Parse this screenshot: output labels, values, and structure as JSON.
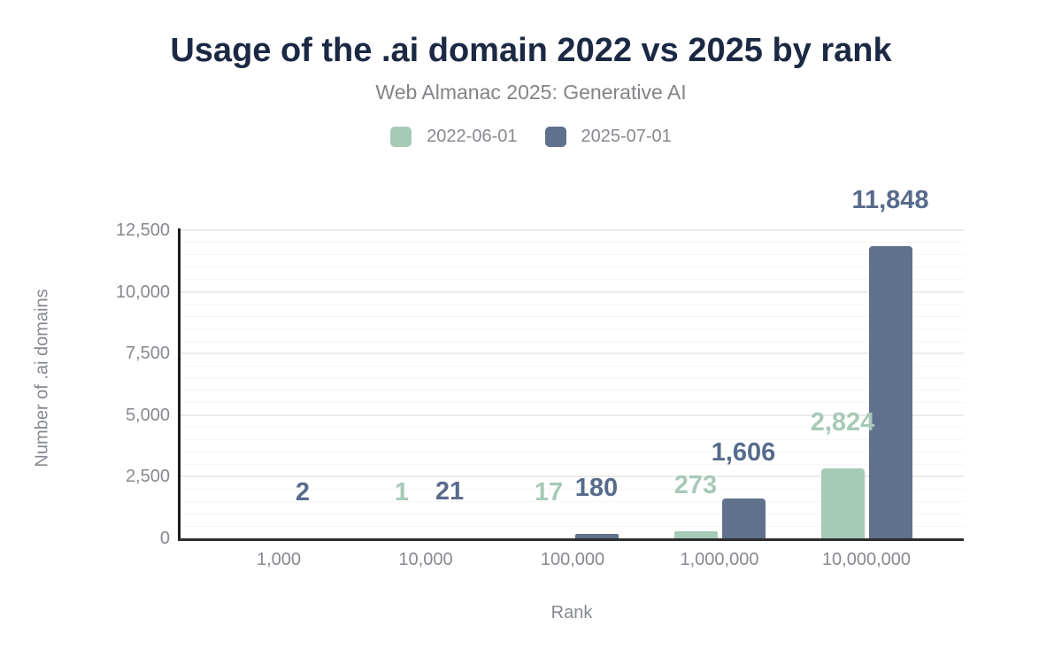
{
  "chart_data": {
    "type": "bar",
    "title": "Usage of the .ai domain 2022 vs 2025 by rank",
    "subtitle": "Web Almanac 2025: Generative AI",
    "xlabel": "Rank",
    "ylabel": "Number of .ai domains",
    "categories": [
      "1,000",
      "10,000",
      "100,000",
      "1,000,000",
      "10,000,000"
    ],
    "series": [
      {
        "name": "2022-06-01",
        "color": "#a7c9b8",
        "label_color": "#a7c9b8",
        "values": [
          0,
          1,
          17,
          273,
          2824
        ]
      },
      {
        "name": "2025-07-01",
        "color": "#60718d",
        "label_color": "#586b8c",
        "values": [
          2,
          21,
          180,
          1606,
          11848
        ]
      }
    ],
    "ylim": [
      0,
      12500
    ],
    "y_axis_tick_labels": [
      "0",
      "2,500",
      "5,000",
      "7,500",
      "10,000",
      "12,500"
    ],
    "grid": {
      "orientation": "horizontal",
      "minor_step": 500,
      "major_step": 2500
    },
    "legend_position": "top",
    "value_labels": true
  },
  "styles": {
    "title_color": "#1c2944",
    "subtitle_color": "#828487",
    "axis_text_color": "#86898f",
    "axis_line_color": "#2e2e2e",
    "background": "#ffffff"
  }
}
